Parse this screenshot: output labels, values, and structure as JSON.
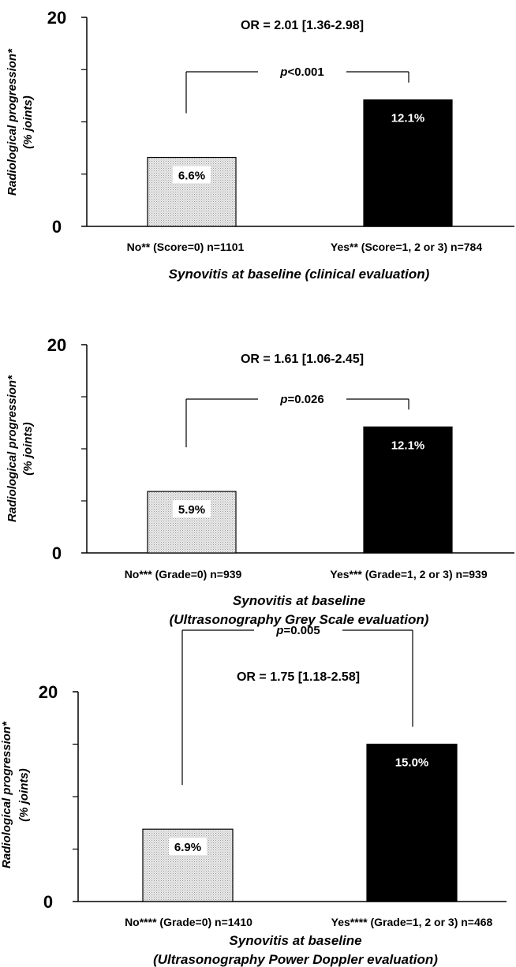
{
  "chart_data": [
    {
      "type": "bar",
      "ylabel": "Radiological progression*",
      "ylabel_unit": "(% joints)",
      "ylim": [
        0,
        20
      ],
      "y_tick_labels": [
        "0",
        "20"
      ],
      "y_minor_ticks": [
        5,
        10,
        15
      ],
      "or_text": "OR = 2.01 [1.36-2.98]",
      "p_text": "<0.001",
      "p_label": "p",
      "categories": [
        "No** (Score=0) n=1101",
        "Yes** (Score=1, 2 or 3) n=784"
      ],
      "values": [
        6.6,
        12.1
      ],
      "value_labels": [
        "6.6%",
        "12.1%"
      ],
      "bar_colors": [
        "#d9d9d9",
        "#000000"
      ],
      "xlabel_lines": [
        "Synovitis at baseline (clinical evaluation)"
      ]
    },
    {
      "type": "bar",
      "ylabel": "Radiological progression*",
      "ylabel_unit": "(% joints)",
      "ylim": [
        0,
        20
      ],
      "y_tick_labels": [
        "0",
        "20"
      ],
      "y_minor_ticks": [
        5,
        10,
        15
      ],
      "or_text": "OR = 1.61 [1.06-2.45]",
      "p_text": "=0.026",
      "p_label": "p",
      "categories": [
        "No*** (Grade=0) n=939",
        "Yes*** (Grade=1, 2 or 3) n=939"
      ],
      "values": [
        5.9,
        12.1
      ],
      "value_labels": [
        "5.9%",
        "12.1%"
      ],
      "bar_colors": [
        "#d9d9d9",
        "#000000"
      ],
      "xlabel_lines": [
        "Synovitis at baseline",
        "(Ultrasonography Grey Scale evaluation)"
      ]
    },
    {
      "type": "bar",
      "ylabel": "Radiological progression*",
      "ylabel_unit": "(% joints)",
      "ylim": [
        0,
        20
      ],
      "y_tick_labels": [
        "0",
        "20"
      ],
      "y_minor_ticks": [
        5,
        10,
        15
      ],
      "or_text": "OR = 1.75 [1.18-2.58]",
      "p_text": "=0.005",
      "p_label": "p",
      "categories": [
        "No**** (Grade=0) n=1410",
        "Yes**** (Grade=1, 2 or 3) n=468"
      ],
      "values": [
        6.9,
        15.0
      ],
      "value_labels": [
        "6.9%",
        "15.0%"
      ],
      "bar_colors": [
        "#d9d9d9",
        "#000000"
      ],
      "xlabel_lines": [
        "Synovitis at baseline",
        "(Ultrasonography Power Doppler evaluation)"
      ]
    }
  ]
}
